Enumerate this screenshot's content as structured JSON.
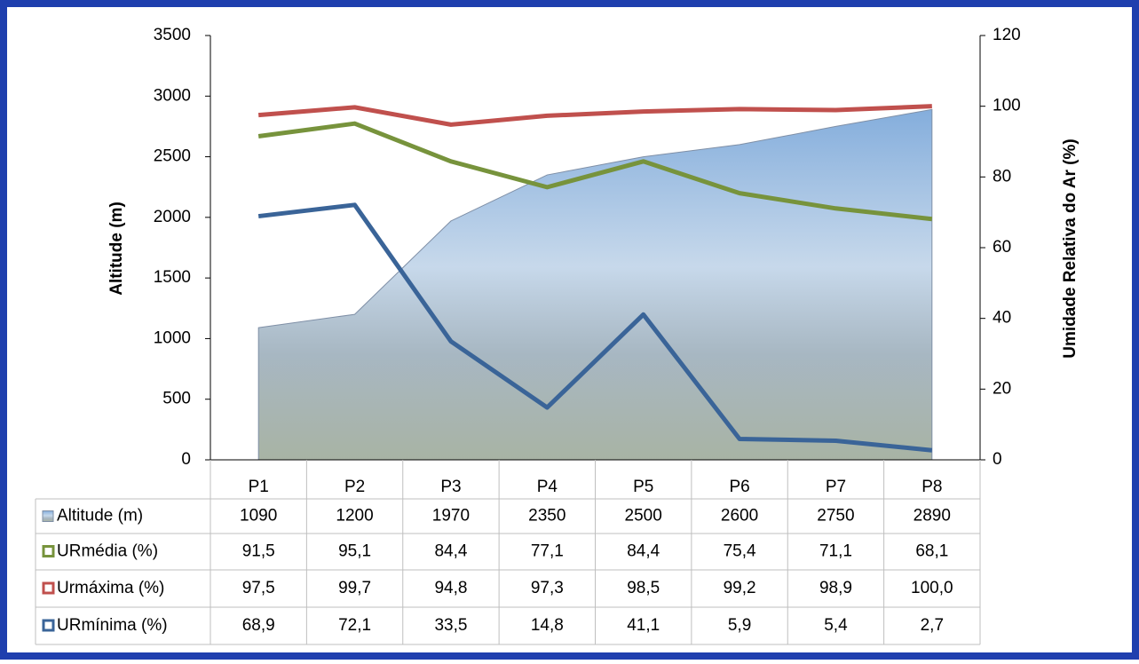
{
  "chart_data": {
    "type": "line",
    "categories": [
      "P1",
      "P2",
      "P3",
      "P4",
      "P5",
      "P6",
      "P7",
      "P8"
    ],
    "ylabel": "Altitude (m)",
    "y2label": "Umidade Relativa do Ar (%)",
    "ylim": [
      0,
      3500
    ],
    "yticks": [
      0,
      500,
      1000,
      1500,
      2000,
      2500,
      3000,
      3500
    ],
    "y2lim": [
      0,
      120
    ],
    "y2ticks": [
      0,
      20,
      40,
      60,
      80,
      100,
      120
    ],
    "series": [
      {
        "name": "Altitude (m)",
        "type": "area",
        "axis": "y",
        "color": "#8fb0d8",
        "values": [
          1090,
          1200,
          1970,
          2350,
          2500,
          2600,
          2750,
          2890
        ]
      },
      {
        "name": "URmédia (%)",
        "axis": "y2",
        "color": "#77933c",
        "values": [
          91.5,
          95.1,
          84.4,
          77.1,
          84.4,
          75.4,
          71.1,
          68.1
        ],
        "value_labels": [
          "91,5",
          "95,1",
          "84,4",
          "77,1",
          "84,4",
          "75,4",
          "71,1",
          "68,1"
        ]
      },
      {
        "name": "Urmáxima (%)",
        "axis": "y2",
        "color": "#c0504d",
        "values": [
          97.5,
          99.7,
          94.8,
          97.3,
          98.5,
          99.2,
          98.9,
          100.0
        ],
        "value_labels": [
          "97,5",
          "99,7",
          "94,8",
          "97,3",
          "98,5",
          "99,2",
          "98,9",
          "100,0"
        ]
      },
      {
        "name": "URmínima (%)",
        "axis": "y2",
        "color": "#3a6498",
        "values": [
          68.9,
          72.1,
          33.5,
          14.8,
          41.1,
          5.9,
          5.4,
          2.7
        ],
        "value_labels": [
          "68,9",
          "72,1",
          "33,5",
          "14,8",
          "41,1",
          "5,9",
          "5,4",
          "2,7"
        ]
      }
    ]
  }
}
